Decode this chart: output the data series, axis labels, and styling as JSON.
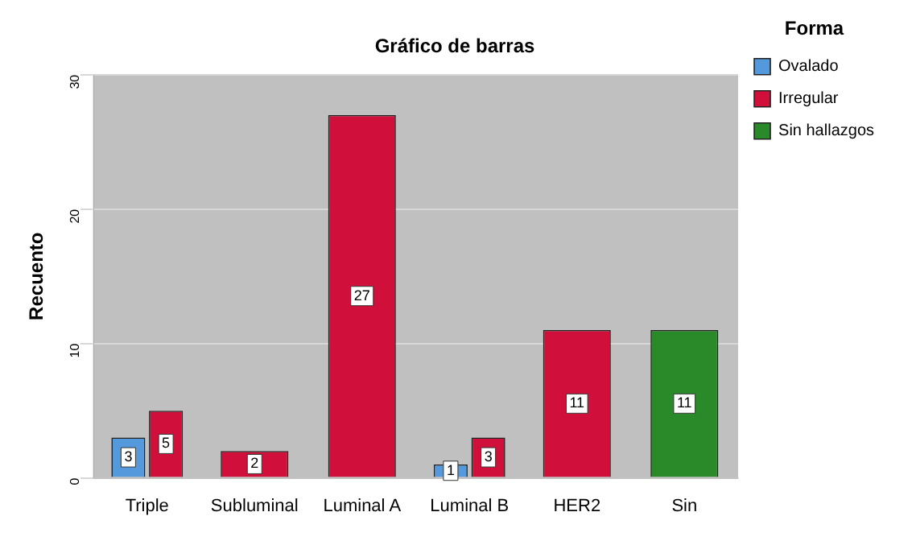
{
  "chart_data": {
    "type": "bar",
    "title": "Gráfico de barras",
    "ylabel": "Recuento",
    "legend_title": "Forma",
    "categories": [
      "Triple",
      "Subluminal",
      "Luminal A",
      "Luminal B",
      "HER2",
      "Sin"
    ],
    "series": [
      {
        "name": "Ovalado",
        "color": "#5599dd",
        "values": [
          3,
          null,
          null,
          1,
          null,
          null
        ]
      },
      {
        "name": "Irregular",
        "color": "#d0103a",
        "values": [
          5,
          2,
          27,
          3,
          11,
          null
        ]
      },
      {
        "name": "Sin hallazgos",
        "color": "#2a8a2a",
        "values": [
          null,
          null,
          null,
          null,
          null,
          11
        ]
      }
    ],
    "ylim": [
      0,
      30
    ],
    "yticks": [
      0,
      10,
      20,
      30
    ],
    "grid": "y",
    "legend": "right",
    "data_labels": true
  }
}
